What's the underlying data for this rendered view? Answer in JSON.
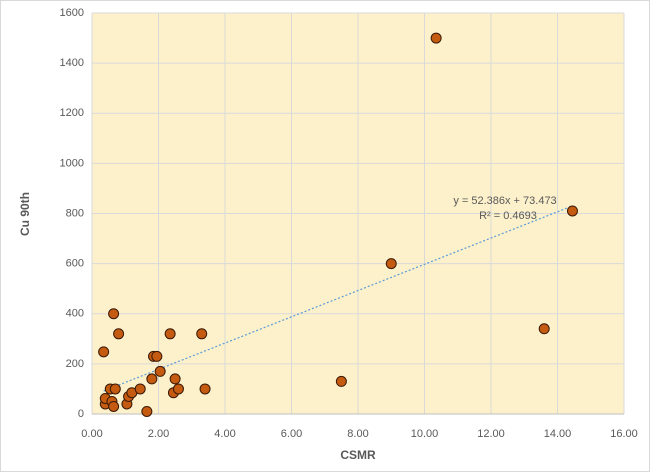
{
  "chart_data": {
    "type": "scatter",
    "x_label": "CSMR",
    "y_label": "Cu 90th",
    "x": [
      0.35,
      0.4,
      0.4,
      0.55,
      0.6,
      0.65,
      0.65,
      0.7,
      0.8,
      1.05,
      1.1,
      1.2,
      1.45,
      1.65,
      1.8,
      1.85,
      1.95,
      2.05,
      2.35,
      2.45,
      2.5,
      2.6,
      3.3,
      3.4,
      7.5,
      9.0,
      10.35,
      13.6,
      14.45
    ],
    "values": [
      248,
      40,
      62,
      100,
      50,
      30,
      400,
      100,
      320,
      40,
      70,
      85,
      100,
      10,
      140,
      230,
      230,
      170,
      320,
      85,
      140,
      100,
      320,
      100,
      130,
      600,
      1500,
      340,
      810
    ],
    "color": "#c55a11",
    "xlim": [
      0,
      16
    ],
    "xticks": [
      {
        "value": 0,
        "label": "0.00"
      },
      {
        "value": 2,
        "label": "2.00"
      },
      {
        "value": 4,
        "label": "4.00"
      },
      {
        "value": 6,
        "label": "6.00"
      },
      {
        "value": 8,
        "label": "8.00"
      },
      {
        "value": 10,
        "label": "10.00"
      },
      {
        "value": 12,
        "label": "12.00"
      },
      {
        "value": 14,
        "label": "14.00"
      },
      {
        "value": 16,
        "label": "16.00"
      }
    ],
    "ylim": [
      0,
      1600
    ],
    "yticks": [
      0,
      200,
      400,
      600,
      800,
      1000,
      1200,
      1400,
      1600
    ],
    "grid": true,
    "trendline": {
      "label": "y = 52.386x + 73.473",
      "r2_label": "R² = 0.4693",
      "slope": 52.386,
      "intercept": 73.473,
      "color": "#5b9bd5"
    }
  }
}
